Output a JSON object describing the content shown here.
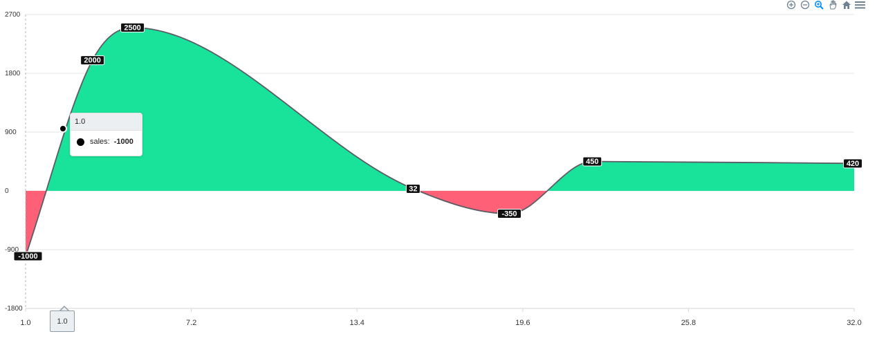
{
  "chart_data": {
    "type": "area",
    "x": [
      1.0,
      3.5,
      5.0,
      15.5,
      19.1,
      22.2,
      32.0
    ],
    "series": [
      {
        "name": "sales",
        "values": [
          -1000,
          2000,
          2500,
          32,
          -350,
          450,
          420
        ]
      }
    ],
    "data_labels": [
      "-1000",
      "2000",
      "2500",
      "32",
      "-350",
      "450",
      "420"
    ],
    "xlim": [
      1.0,
      32.0
    ],
    "ylim": [
      -1800,
      2700
    ],
    "x_ticks": [
      "1.0",
      "7.2",
      "13.4",
      "19.6",
      "25.8",
      "32.0"
    ],
    "y_ticks": [
      "2700",
      "1800",
      "900",
      "0",
      "-900",
      "-1800"
    ],
    "grid": "horizontal",
    "colors": {
      "positive": "#19e39b",
      "negative": "#fe6077",
      "line": "#5b5b66",
      "label_bg": "#111111",
      "label_text": "#ffffff"
    }
  },
  "tooltip": {
    "title": "1.0",
    "series_label": "sales:",
    "value": "-1000"
  },
  "x_axis_tooltip": "1.0",
  "toolbar": {
    "icons": [
      "zoom-in-icon",
      "zoom-out-icon",
      "selection-zoom-icon",
      "pan-icon",
      "home-icon",
      "menu-icon"
    ]
  }
}
